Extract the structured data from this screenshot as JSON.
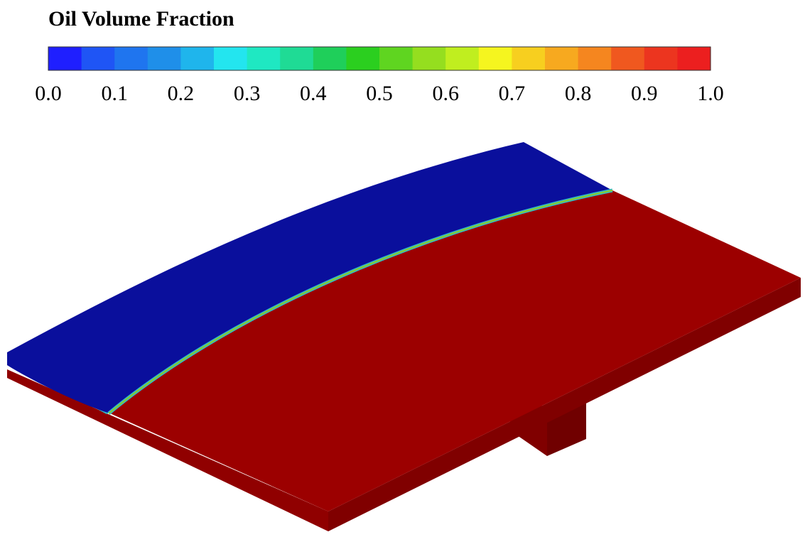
{
  "legend": {
    "title": "Oil Volume Fraction",
    "ticks": [
      "0.0",
      "0.1",
      "0.2",
      "0.3",
      "0.4",
      "0.5",
      "0.6",
      "0.7",
      "0.8",
      "0.9",
      "1.0"
    ],
    "range": [
      0.0,
      1.0
    ],
    "bands": 20,
    "colors": [
      "#1f1fff",
      "#1f55f5",
      "#1f75ef",
      "#1f8fe9",
      "#1fb5ec",
      "#23e5ef",
      "#1fe8c2",
      "#1fdb95",
      "#1fcf5a",
      "#2bcf1f",
      "#5fd520",
      "#95de1f",
      "#c0ee1f",
      "#f5f51f",
      "#f7cf1f",
      "#f7a91f",
      "#f5861f",
      "#f0581f",
      "#ec351f",
      "#ec1f1f"
    ]
  },
  "contour": {
    "low_region_color": "#0a0f9c",
    "high_region_color": "#9c0000",
    "interface_colors": [
      "#2fb8c8",
      "#8acd2a"
    ],
    "low_region_value": 0.0,
    "high_region_value": 1.0
  }
}
